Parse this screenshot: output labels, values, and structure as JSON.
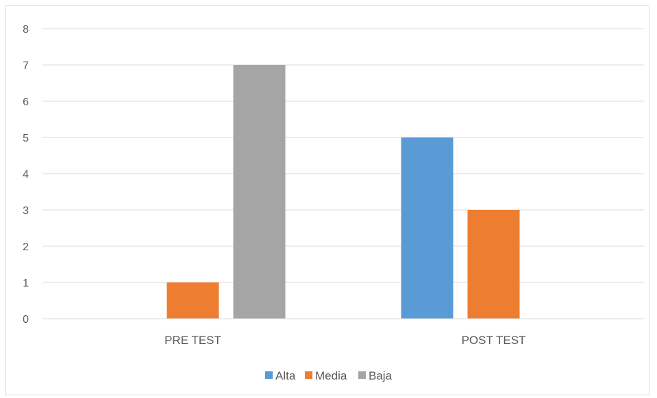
{
  "chart_data": {
    "type": "bar",
    "categories": [
      "PRE TEST",
      "POST TEST"
    ],
    "series": [
      {
        "name": "Alta",
        "values": [
          0,
          5
        ],
        "color": "#5b9bd5"
      },
      {
        "name": "Media",
        "values": [
          1,
          3
        ],
        "color": "#ed7d31"
      },
      {
        "name": "Baja",
        "values": [
          7,
          0
        ],
        "color": "#a5a5a5"
      }
    ],
    "yticks": [
      "0",
      "1",
      "2",
      "3",
      "4",
      "5",
      "6",
      "7",
      "8"
    ],
    "ylim": [
      0,
      8
    ],
    "grid": true,
    "legend_position": "bottom",
    "title": "",
    "xlabel": "",
    "ylabel": ""
  }
}
